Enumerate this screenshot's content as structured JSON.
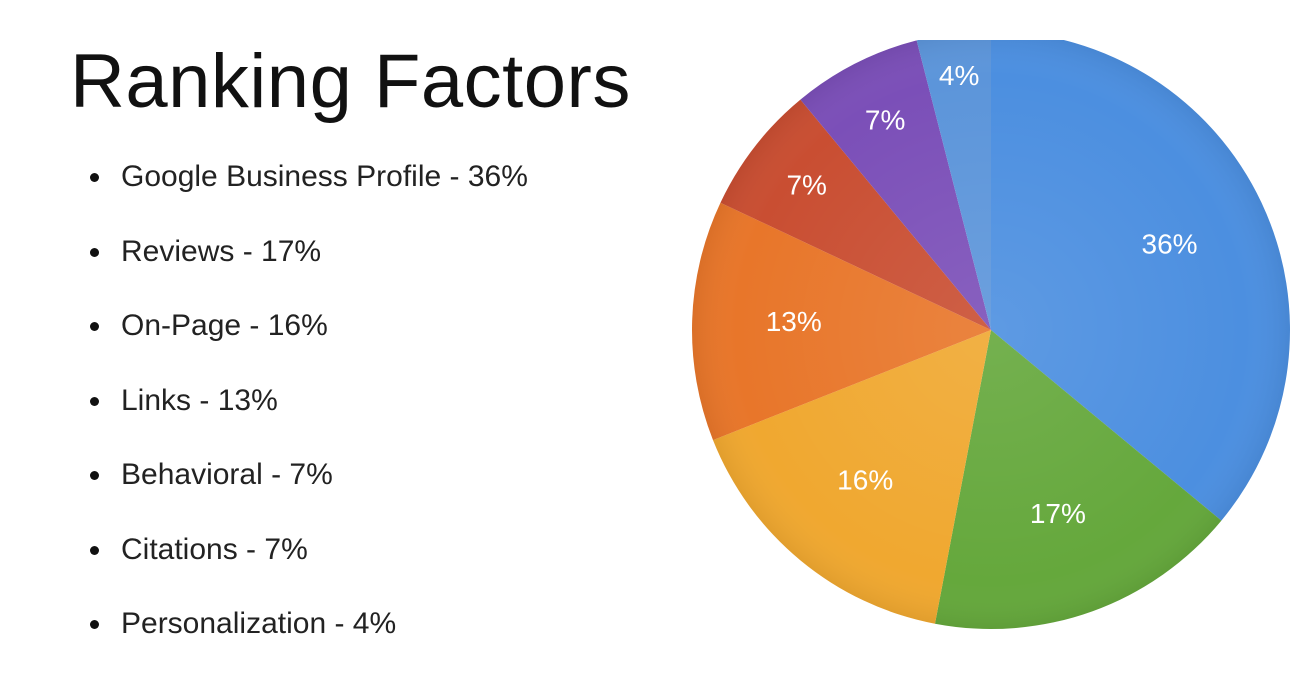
{
  "slide": {
    "title": "Ranking Factors",
    "bullets": [
      "Google Business Profile - 36%",
      "Reviews - 17%",
      "On-Page - 16%",
      "Links - 13%",
      "Behavioral - 7%",
      "Citations - 7%",
      "Personalization - 4%"
    ]
  },
  "chart_data": {
    "type": "pie",
    "start": "top",
    "direction": "clockwise",
    "slices": [
      {
        "label": "36%",
        "value": 36,
        "color": "#4c8fe0"
      },
      {
        "label": "17%",
        "value": 17,
        "color": "#65a83c"
      },
      {
        "label": "16%",
        "value": 16,
        "color": "#f0a830"
      },
      {
        "label": "13%",
        "value": 13,
        "color": "#e8762a"
      },
      {
        "label": "7%",
        "value": 7,
        "color": "#c94e32"
      },
      {
        "label": "7%",
        "value": 7,
        "color": "#7b4fb8"
      },
      {
        "label": "4%",
        "value": 4,
        "color": "#5c95da"
      }
    ]
  }
}
